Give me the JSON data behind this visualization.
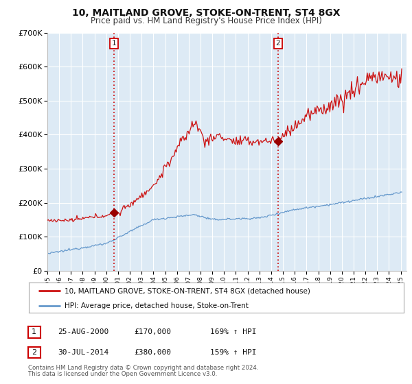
{
  "title": "10, MAITLAND GROVE, STOKE-ON-TRENT, ST4 8GX",
  "subtitle": "Price paid vs. HM Land Registry's House Price Index (HPI)",
  "background_color": "#ffffff",
  "plot_bg_color": "#ddeaf5",
  "grid_color": "#ffffff",
  "ylim": [
    0,
    700000
  ],
  "yticks": [
    0,
    100000,
    200000,
    300000,
    400000,
    500000,
    600000,
    700000
  ],
  "ytick_labels": [
    "£0",
    "£100K",
    "£200K",
    "£300K",
    "£400K",
    "£500K",
    "£600K",
    "£700K"
  ],
  "xlim_start": 1995.0,
  "xlim_end": 2025.5,
  "sale1_date": 2000.646,
  "sale1_price": 170000,
  "sale2_date": 2014.579,
  "sale2_price": 380000,
  "vline_color": "#cc0000",
  "marker_color": "#990000",
  "hpi_line_color": "#6699cc",
  "price_line_color": "#cc1111",
  "legend_label_price": "10, MAITLAND GROVE, STOKE-ON-TRENT, ST4 8GX (detached house)",
  "legend_label_hpi": "HPI: Average price, detached house, Stoke-on-Trent",
  "table_row1": [
    "1",
    "25-AUG-2000",
    "£170,000",
    "169% ↑ HPI"
  ],
  "table_row2": [
    "2",
    "30-JUL-2014",
    "£380,000",
    "159% ↑ HPI"
  ],
  "footnote1": "Contains HM Land Registry data © Crown copyright and database right 2024.",
  "footnote2": "This data is licensed under the Open Government Licence v3.0."
}
